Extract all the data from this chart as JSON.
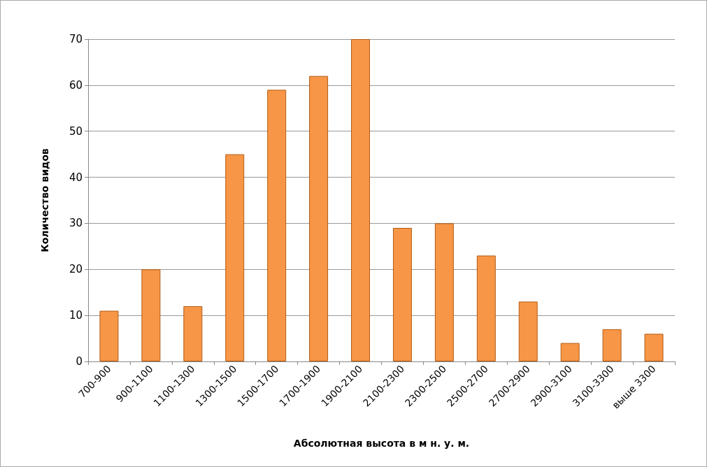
{
  "chart_data": {
    "type": "bar",
    "xlabel": "Абсолютная высота в м н. у. м.",
    "ylabel": "Количество видов",
    "categories": [
      "700-900",
      "900-1100",
      "1100-1300",
      "1300-1500",
      "1500-1700",
      "1700-1900",
      "1900-2100",
      "2100-2300",
      "2300-2500",
      "2500-2700",
      "2700-2900",
      "2900-3100",
      "3100-3300",
      "выше 3300"
    ],
    "values": [
      11,
      20,
      12,
      45,
      59,
      62,
      70,
      29,
      30,
      23,
      13,
      4,
      7,
      6
    ],
    "color": "#f79646",
    "ylim": [
      0,
      70
    ],
    "yticks": [
      0,
      10,
      20,
      30,
      40,
      50,
      60,
      70
    ],
    "grid": "y"
  }
}
